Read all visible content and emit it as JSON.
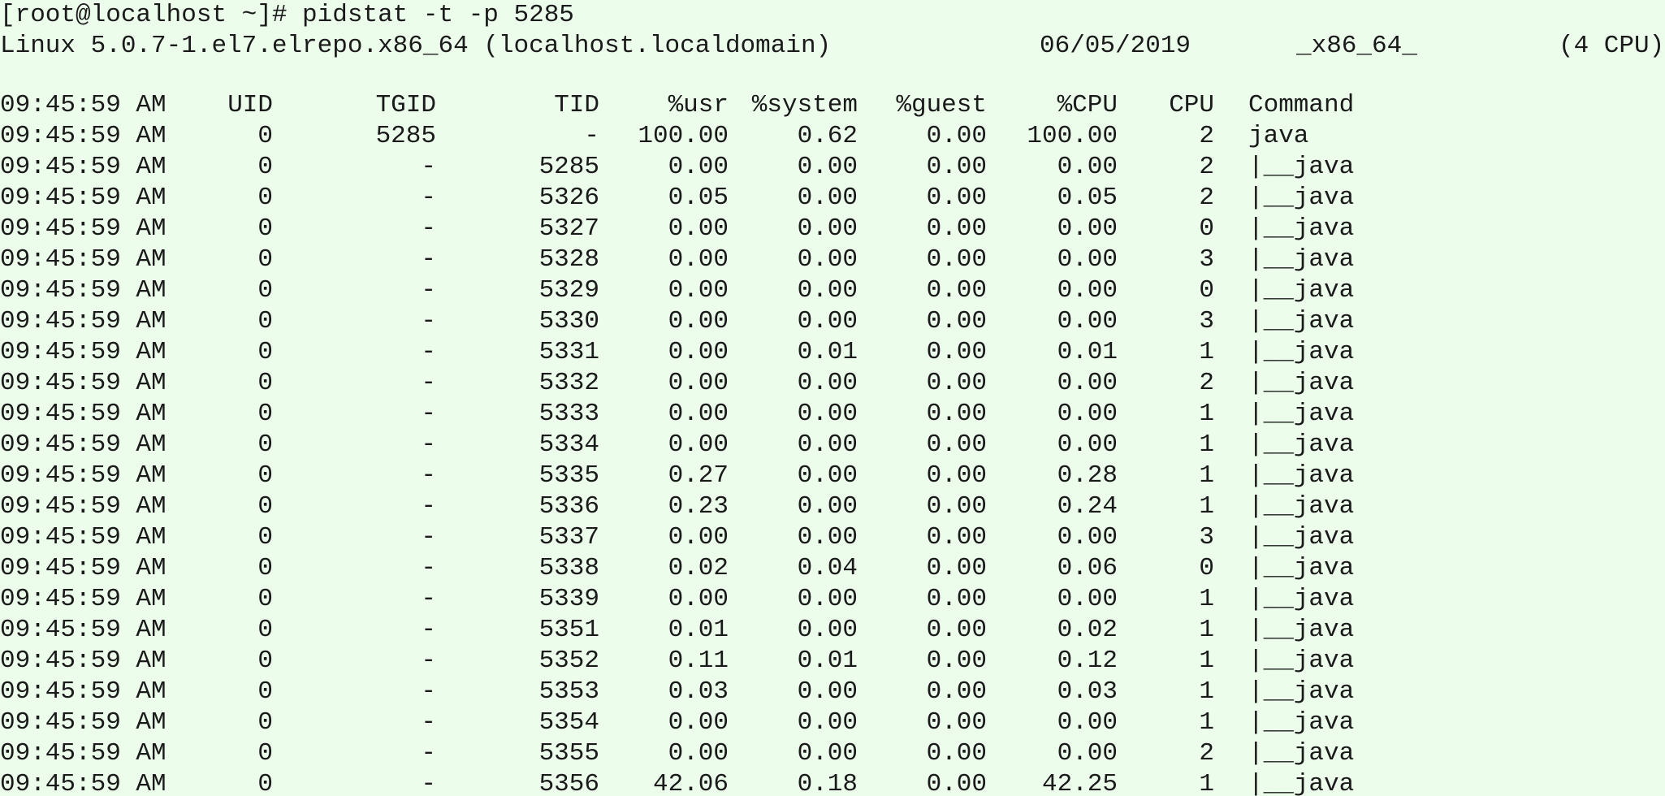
{
  "prompt": "[root@localhost ~]# pidstat -t -p 5285",
  "sysinfo": {
    "kernel": "Linux 5.0.7-1.el7.elrepo.x86_64 (localhost.localdomain)",
    "date": "06/05/2019",
    "arch": "_x86_64_",
    "cpus": "(4 CPU)"
  },
  "header": {
    "time": "09:45:59 AM",
    "uid": "UID",
    "tgid": "TGID",
    "tid": "TID",
    "usr": "%usr",
    "system": "%system",
    "guest": "%guest",
    "cpu_pct": "%CPU",
    "cpu": "CPU",
    "command": "Command"
  },
  "rows": [
    {
      "time": "09:45:59 AM",
      "uid": "0",
      "tgid": "5285",
      "tid": "-",
      "usr": "100.00",
      "system": "0.62",
      "guest": "0.00",
      "cpu_pct": "100.00",
      "cpu": "2",
      "command": "java"
    },
    {
      "time": "09:45:59 AM",
      "uid": "0",
      "tgid": "-",
      "tid": "5285",
      "usr": "0.00",
      "system": "0.00",
      "guest": "0.00",
      "cpu_pct": "0.00",
      "cpu": "2",
      "command": "|__java"
    },
    {
      "time": "09:45:59 AM",
      "uid": "0",
      "tgid": "-",
      "tid": "5326",
      "usr": "0.05",
      "system": "0.00",
      "guest": "0.00",
      "cpu_pct": "0.05",
      "cpu": "2",
      "command": "|__java"
    },
    {
      "time": "09:45:59 AM",
      "uid": "0",
      "tgid": "-",
      "tid": "5327",
      "usr": "0.00",
      "system": "0.00",
      "guest": "0.00",
      "cpu_pct": "0.00",
      "cpu": "0",
      "command": "|__java"
    },
    {
      "time": "09:45:59 AM",
      "uid": "0",
      "tgid": "-",
      "tid": "5328",
      "usr": "0.00",
      "system": "0.00",
      "guest": "0.00",
      "cpu_pct": "0.00",
      "cpu": "3",
      "command": "|__java"
    },
    {
      "time": "09:45:59 AM",
      "uid": "0",
      "tgid": "-",
      "tid": "5329",
      "usr": "0.00",
      "system": "0.00",
      "guest": "0.00",
      "cpu_pct": "0.00",
      "cpu": "0",
      "command": "|__java"
    },
    {
      "time": "09:45:59 AM",
      "uid": "0",
      "tgid": "-",
      "tid": "5330",
      "usr": "0.00",
      "system": "0.00",
      "guest": "0.00",
      "cpu_pct": "0.00",
      "cpu": "3",
      "command": "|__java"
    },
    {
      "time": "09:45:59 AM",
      "uid": "0",
      "tgid": "-",
      "tid": "5331",
      "usr": "0.00",
      "system": "0.01",
      "guest": "0.00",
      "cpu_pct": "0.01",
      "cpu": "1",
      "command": "|__java"
    },
    {
      "time": "09:45:59 AM",
      "uid": "0",
      "tgid": "-",
      "tid": "5332",
      "usr": "0.00",
      "system": "0.00",
      "guest": "0.00",
      "cpu_pct": "0.00",
      "cpu": "2",
      "command": "|__java"
    },
    {
      "time": "09:45:59 AM",
      "uid": "0",
      "tgid": "-",
      "tid": "5333",
      "usr": "0.00",
      "system": "0.00",
      "guest": "0.00",
      "cpu_pct": "0.00",
      "cpu": "1",
      "command": "|__java"
    },
    {
      "time": "09:45:59 AM",
      "uid": "0",
      "tgid": "-",
      "tid": "5334",
      "usr": "0.00",
      "system": "0.00",
      "guest": "0.00",
      "cpu_pct": "0.00",
      "cpu": "1",
      "command": "|__java"
    },
    {
      "time": "09:45:59 AM",
      "uid": "0",
      "tgid": "-",
      "tid": "5335",
      "usr": "0.27",
      "system": "0.00",
      "guest": "0.00",
      "cpu_pct": "0.28",
      "cpu": "1",
      "command": "|__java"
    },
    {
      "time": "09:45:59 AM",
      "uid": "0",
      "tgid": "-",
      "tid": "5336",
      "usr": "0.23",
      "system": "0.00",
      "guest": "0.00",
      "cpu_pct": "0.24",
      "cpu": "1",
      "command": "|__java"
    },
    {
      "time": "09:45:59 AM",
      "uid": "0",
      "tgid": "-",
      "tid": "5337",
      "usr": "0.00",
      "system": "0.00",
      "guest": "0.00",
      "cpu_pct": "0.00",
      "cpu": "3",
      "command": "|__java"
    },
    {
      "time": "09:45:59 AM",
      "uid": "0",
      "tgid": "-",
      "tid": "5338",
      "usr": "0.02",
      "system": "0.04",
      "guest": "0.00",
      "cpu_pct": "0.06",
      "cpu": "0",
      "command": "|__java"
    },
    {
      "time": "09:45:59 AM",
      "uid": "0",
      "tgid": "-",
      "tid": "5339",
      "usr": "0.00",
      "system": "0.00",
      "guest": "0.00",
      "cpu_pct": "0.00",
      "cpu": "1",
      "command": "|__java"
    },
    {
      "time": "09:45:59 AM",
      "uid": "0",
      "tgid": "-",
      "tid": "5351",
      "usr": "0.01",
      "system": "0.00",
      "guest": "0.00",
      "cpu_pct": "0.02",
      "cpu": "1",
      "command": "|__java"
    },
    {
      "time": "09:45:59 AM",
      "uid": "0",
      "tgid": "-",
      "tid": "5352",
      "usr": "0.11",
      "system": "0.01",
      "guest": "0.00",
      "cpu_pct": "0.12",
      "cpu": "1",
      "command": "|__java"
    },
    {
      "time": "09:45:59 AM",
      "uid": "0",
      "tgid": "-",
      "tid": "5353",
      "usr": "0.03",
      "system": "0.00",
      "guest": "0.00",
      "cpu_pct": "0.03",
      "cpu": "1",
      "command": "|__java"
    },
    {
      "time": "09:45:59 AM",
      "uid": "0",
      "tgid": "-",
      "tid": "5354",
      "usr": "0.00",
      "system": "0.00",
      "guest": "0.00",
      "cpu_pct": "0.00",
      "cpu": "1",
      "command": "|__java"
    },
    {
      "time": "09:45:59 AM",
      "uid": "0",
      "tgid": "-",
      "tid": "5355",
      "usr": "0.00",
      "system": "0.00",
      "guest": "0.00",
      "cpu_pct": "0.00",
      "cpu": "2",
      "command": "|__java"
    },
    {
      "time": "09:45:59 AM",
      "uid": "0",
      "tgid": "-",
      "tid": "5356",
      "usr": "42.06",
      "system": "0.18",
      "guest": "0.00",
      "cpu_pct": "42.25",
      "cpu": "1",
      "command": "|__java"
    }
  ],
  "colors": {
    "background": "#ecfdec",
    "text": "#1a1a1a"
  }
}
